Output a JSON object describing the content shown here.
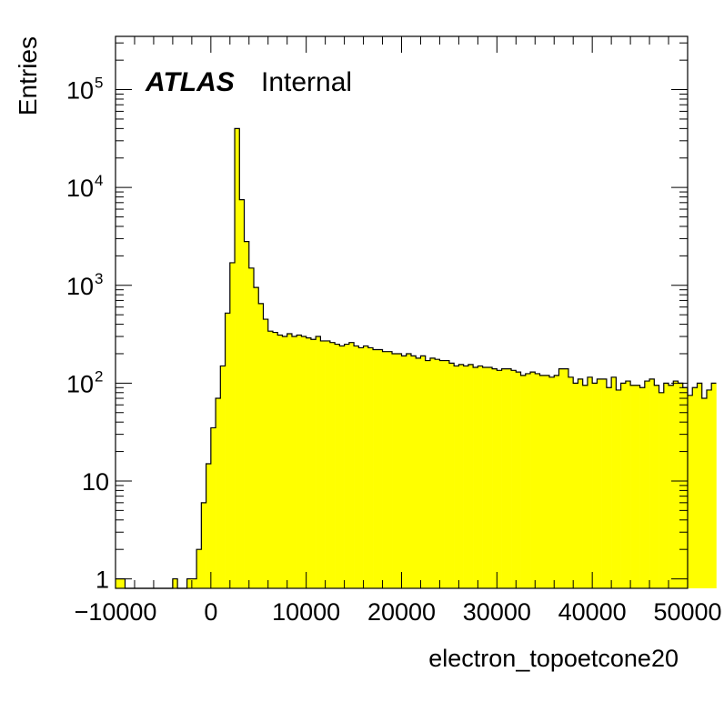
{
  "chart_data": {
    "type": "histogram",
    "title": "",
    "xlabel": "electron_topoetcone20",
    "ylabel": "Entries",
    "x_scale": "linear",
    "y_scale": "log",
    "xlim": [
      -10000,
      50000
    ],
    "ylim": [
      0.8,
      350000
    ],
    "x_ticks": [
      "−10000",
      "0",
      "10000",
      "20000",
      "30000",
      "40000",
      "50000"
    ],
    "y_ticks": [
      {
        "base": "1",
        "exp": ""
      },
      {
        "base": "10",
        "exp": ""
      },
      {
        "base": "10",
        "exp": "2"
      },
      {
        "base": "10",
        "exp": "3"
      },
      {
        "base": "10",
        "exp": "4"
      },
      {
        "base": "10",
        "exp": "5"
      }
    ],
    "fill_color": "#ffff00",
    "line_color": "#000000",
    "bin_width": 500,
    "bin_edges_start": -10000,
    "values": [
      1,
      1,
      0,
      0,
      0,
      0,
      0,
      0,
      0,
      0,
      0,
      0,
      1,
      0,
      0,
      1,
      1,
      2,
      6,
      15,
      35,
      70,
      150,
      520,
      1700,
      40000,
      7500,
      2800,
      1500,
      950,
      650,
      450,
      340,
      330,
      310,
      300,
      320,
      300,
      310,
      300,
      290,
      280,
      300,
      270,
      270,
      260,
      250,
      240,
      250,
      260,
      240,
      230,
      240,
      230,
      220,
      220,
      210,
      210,
      200,
      200,
      190,
      200,
      190,
      180,
      190,
      170,
      180,
      175,
      170,
      170,
      160,
      150,
      155,
      150,
      155,
      145,
      150,
      145,
      145,
      140,
      135,
      140,
      140,
      135,
      130,
      120,
      125,
      130,
      125,
      120,
      120,
      115,
      120,
      140,
      140,
      115,
      100,
      110,
      95,
      115,
      100,
      110,
      110,
      90,
      115,
      85,
      100,
      105,
      95,
      95,
      90,
      105,
      110,
      95,
      80,
      100,
      95,
      105,
      100,
      90,
      75,
      90,
      100,
      70,
      85,
      100
    ]
  },
  "annotations": {
    "brand": "ATLAS",
    "status": "Internal"
  }
}
